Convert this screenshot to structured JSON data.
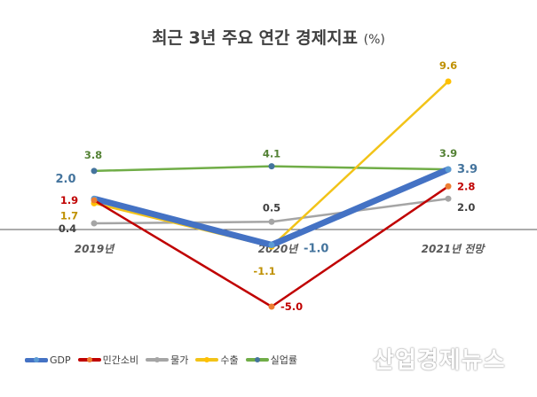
{
  "chart_data": {
    "type": "line",
    "title": "최근 3년 주요 연간 경제지표",
    "title_unit": "(%)",
    "categories": [
      "2019년",
      "2020년",
      "2021년 전망"
    ],
    "series": [
      {
        "name": "GDP",
        "values": [
          2.0,
          -1.0,
          3.9
        ],
        "color": "#4472C4",
        "marker": "#5B9BD5"
      },
      {
        "name": "민간소비",
        "values": [
          1.9,
          -5.0,
          2.8
        ],
        "color": "#C00000",
        "marker": "#ED7D31"
      },
      {
        "name": "물가",
        "values": [
          0.4,
          0.5,
          2.0
        ],
        "color": "#A5A5A5",
        "marker": "#A5A5A5"
      },
      {
        "name": "수출",
        "values": [
          1.7,
          -1.1,
          9.6
        ],
        "color": "#F2C318",
        "marker": "#FFC000"
      },
      {
        "name": "실업률",
        "values": [
          3.8,
          4.1,
          3.9
        ],
        "color": "#70AD47",
        "marker": "#44749D"
      }
    ],
    "legend": "bottom-left",
    "grid": false
  },
  "watermark": "산업경제뉴스"
}
